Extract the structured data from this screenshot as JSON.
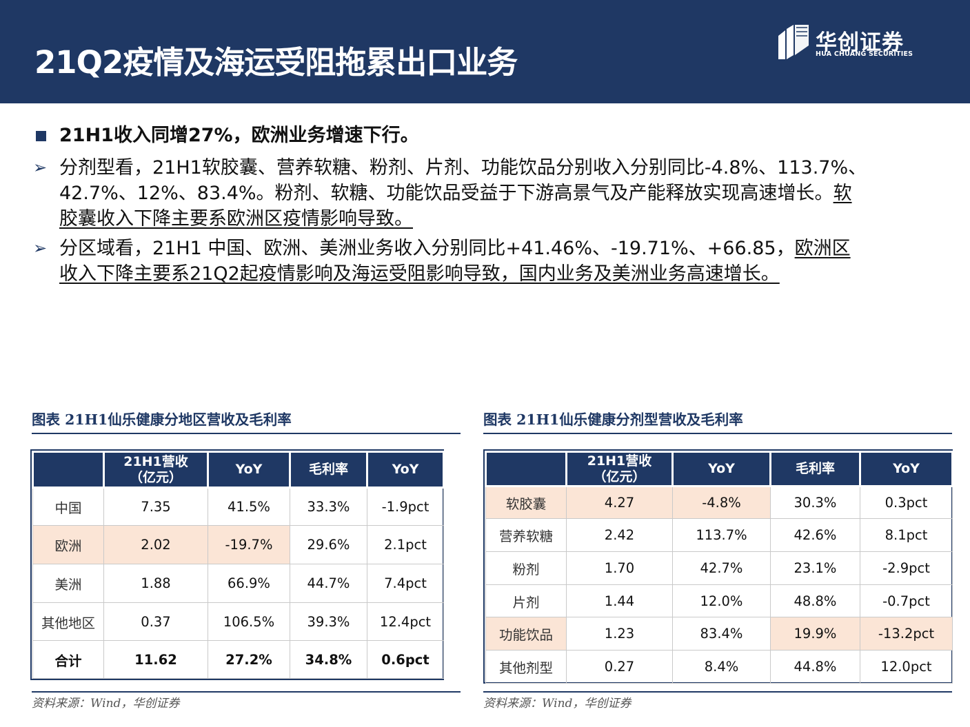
{
  "header": {
    "title": "21Q2疫情及海运受阻拖累出口业务",
    "logo_cn": "华创证券",
    "logo_en": "HUA CHUANG SECURITIES"
  },
  "bullets": {
    "main": "21H1收入同增27%，欧洲业务增速下行。",
    "sub1": {
      "line1": "分剂型看，21H1软胶囊、营养软糖、粉剂、片剂、功能饮品分别收入分别同比-4.8%、113.7%、",
      "line2_plain": "42.7%、12%、83.4%。粉剂、软糖、功能饮品受益于下游高景气及产能释放实现高速增长。",
      "line2_underline": "软",
      "line3_underline": "胶囊收入下降主要系欧洲区疫情影响导致。"
    },
    "sub2": {
      "line1_plain": "分区域看，21H1 中国、欧洲、美洲业务收入分别同比+41.46%、-19.71%、+66.85，",
      "line1_underline": "欧洲区",
      "line2_underline": "收入下降主要系21Q2起疫情影响及海运受阻影响导致，国内业务及美洲业务高速增长。"
    }
  },
  "table_left": {
    "caption": "图表 21H1仙乐健康分地区营收及毛利率",
    "headers": [
      "",
      "21H1营收\n（亿元）",
      "YoY",
      "毛利率",
      "YoY"
    ],
    "header_rev_l1": "21H1营收",
    "header_rev_l2": "（亿元）",
    "rows": [
      [
        "中国",
        "7.35",
        "41.5%",
        "33.3%",
        "-1.9pct"
      ],
      [
        "欧洲",
        "2.02",
        "-19.7%",
        "29.6%",
        "2.1pct"
      ],
      [
        "美洲",
        "1.88",
        "66.9%",
        "44.7%",
        "7.4pct"
      ],
      [
        "其他地区",
        "0.37",
        "106.5%",
        "39.3%",
        "12.4pct"
      ],
      [
        "合计",
        "11.62",
        "27.2%",
        "34.8%",
        "0.6pct"
      ]
    ],
    "source": "资料来源：Wind，华创证券"
  },
  "table_right": {
    "caption": "图表 21H1仙乐健康分剂型营收及毛利率",
    "headers": [
      "",
      "21H1营收\n（亿元）",
      "YoY",
      "毛利率",
      "YoY"
    ],
    "header_rev_l1": "21H1营收",
    "header_rev_l2": "（亿元）",
    "rows": [
      [
        "软胶囊",
        "4.27",
        "-4.8%",
        "30.3%",
        "0.3pct"
      ],
      [
        "营养软糖",
        "2.42",
        "113.7%",
        "42.6%",
        "8.1pct"
      ],
      [
        "粉剂",
        "1.70",
        "42.7%",
        "23.1%",
        "-2.9pct"
      ],
      [
        "片剂",
        "1.44",
        "12.0%",
        "48.8%",
        "-0.7pct"
      ],
      [
        "功能饮品",
        "1.23",
        "83.4%",
        "19.9%",
        "-13.2pct"
      ],
      [
        "其他剂型",
        "0.27",
        "8.4%",
        "44.8%",
        "12.0pct"
      ]
    ],
    "source": "资料来源：Wind，华创证券"
  },
  "colors": {
    "navy": "#1f3864",
    "highlight": "#fbe5d6"
  }
}
